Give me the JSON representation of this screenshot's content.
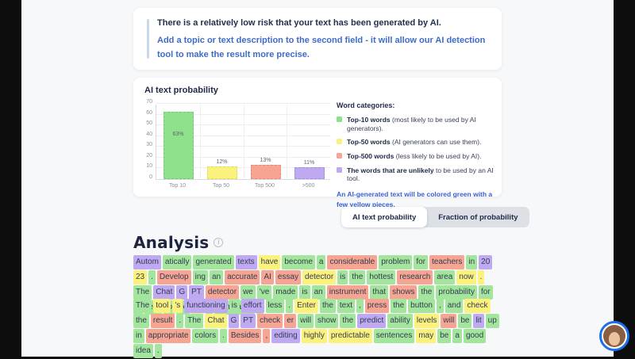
{
  "risk_card": {
    "line_pre": "There is a ",
    "line_bold": "relatively low risk",
    "line_post": " that your text has been generated by AI.",
    "note": "Add a topic or text description to the second field - it will allow our AI detection tool to make the result more precise."
  },
  "chart_data": {
    "type": "bar",
    "title": "AI text probability",
    "categories": [
      "Top 10",
      "Top 50",
      "Top 500",
      ">500"
    ],
    "values": [
      63,
      12,
      13,
      11
    ],
    "value_labels": [
      "63%",
      "12%",
      "13%",
      "11%"
    ],
    "bar_colors": [
      "#8fe08a",
      "#fbf27d",
      "#f5a592",
      "#bfa9f1"
    ],
    "bar_borders": [
      "#72c96f",
      "#e3d95f",
      "#e08a77",
      "#a48cdf"
    ],
    "ylim": [
      0,
      70
    ],
    "yticks": [
      0,
      10,
      20,
      30,
      40,
      50,
      60,
      70
    ],
    "grid": "on",
    "legend_position": "right"
  },
  "legend": {
    "heading": "Word categories:",
    "items": [
      {
        "color": "#8fe08a",
        "bold": "Top-10 words",
        "rest": " (most likely to be used by AI generators)."
      },
      {
        "color": "#fbf27d",
        "bold": "Top-50 words",
        "rest": " (AI generators can use them)."
      },
      {
        "color": "#f5a592",
        "bold": "Top-500 words",
        "rest": " (less likely to be used by AI)."
      },
      {
        "color": "#bfa9f1",
        "bold": "The words that are unlikely",
        "rest": " to be used by an AI tool."
      }
    ],
    "note": "An AI-generated text will be colored green with a few yellow pieces."
  },
  "toggle": {
    "active_label": "AI text probability",
    "inactive_label": "Fraction of probability"
  },
  "analysis": {
    "heading": "Analysis",
    "paragraphs": [
      [
        {
          "t": "Autom",
          "c": "p"
        },
        {
          "t": "atically",
          "c": "g"
        },
        {
          "t": "generated",
          "c": "g"
        },
        {
          "t": "texts",
          "c": "p"
        },
        {
          "t": "have",
          "c": "y"
        },
        {
          "t": "become",
          "c": "g"
        },
        {
          "t": "a",
          "c": "g"
        },
        {
          "t": "considerable",
          "c": "r"
        },
        {
          "t": "problem",
          "c": "g"
        },
        {
          "t": "for",
          "c": "g"
        },
        {
          "t": "teachers",
          "c": "r"
        },
        {
          "t": "in",
          "c": "g"
        },
        {
          "t": "20",
          "c": "p"
        },
        {
          "t": "23",
          "c": "y"
        },
        {
          "t": ".",
          "c": "g"
        },
        {
          "t": "Develop",
          "c": "r"
        },
        {
          "t": "ing",
          "c": "g"
        },
        {
          "t": "an",
          "c": "g"
        },
        {
          "t": "accurate",
          "c": "r"
        },
        {
          "t": "AI",
          "c": "r"
        },
        {
          "t": "essay",
          "c": "r"
        },
        {
          "t": "detector",
          "c": "y"
        },
        {
          "t": "is",
          "c": "g"
        },
        {
          "t": "the",
          "c": "g"
        },
        {
          "t": "hottest",
          "c": "g"
        },
        {
          "t": "research",
          "c": "r"
        },
        {
          "t": "area",
          "c": "g"
        },
        {
          "t": "now",
          "c": "y"
        },
        {
          "t": ".",
          "c": "y"
        },
        {
          "t": "The",
          "c": "g"
        },
        {
          "t": "Chat",
          "c": "p"
        },
        {
          "t": "G",
          "c": "p"
        },
        {
          "t": "PT",
          "c": "p"
        },
        {
          "t": "detector",
          "c": "r"
        },
        {
          "t": "we",
          "c": "g"
        },
        {
          "t": "'ve",
          "c": "g"
        },
        {
          "t": "made",
          "c": "g"
        },
        {
          "t": "is",
          "c": "g"
        },
        {
          "t": "an",
          "c": "g"
        },
        {
          "t": "instrument",
          "c": "r"
        },
        {
          "t": "that",
          "c": "g"
        },
        {
          "t": "shows",
          "c": "r"
        },
        {
          "t": "the",
          "c": "g"
        },
        {
          "t": "probability",
          "c": "g"
        },
        {
          "t": "for",
          "c": "g"
        },
        {
          "t": "a",
          "c": "g"
        },
        {
          "t": "text",
          "c": "g"
        },
        {
          "t": "to",
          "c": "g"
        },
        {
          "t": "be",
          "c": "g"
        },
        {
          "t": "AI",
          "c": "y"
        },
        {
          "t": "-",
          "c": "g"
        },
        {
          "t": "generated",
          "c": "g"
        },
        {
          "t": ".",
          "c": "g"
        }
      ],
      [
        {
          "t": "The",
          "c": "g"
        },
        {
          "t": "tool",
          "c": "y"
        },
        {
          "t": "'s",
          "c": "y"
        },
        {
          "t": "functioning",
          "c": "p"
        },
        {
          "t": "is",
          "c": "g"
        },
        {
          "t": "effort",
          "c": "p"
        },
        {
          "t": "less",
          "c": "g"
        },
        {
          "t": ".",
          "c": "g"
        },
        {
          "t": "Enter",
          "c": "y"
        },
        {
          "t": "the",
          "c": "g"
        },
        {
          "t": "text",
          "c": "g"
        },
        {
          "t": ",",
          "c": "g"
        },
        {
          "t": "press",
          "c": "r"
        },
        {
          "t": "the",
          "c": "g"
        },
        {
          "t": "button",
          "c": "g"
        },
        {
          "t": ",",
          "c": "g"
        },
        {
          "t": "and",
          "c": "g"
        },
        {
          "t": "check",
          "c": "y"
        },
        {
          "t": "the",
          "c": "g"
        },
        {
          "t": "result",
          "c": "r"
        },
        {
          "t": ".",
          "c": "g"
        },
        {
          "t": "The",
          "c": "g"
        },
        {
          "t": "Chat",
          "c": "y"
        },
        {
          "t": "G",
          "c": "p"
        },
        {
          "t": "PT",
          "c": "p"
        },
        {
          "t": "check",
          "c": "r"
        },
        {
          "t": "er",
          "c": "r"
        },
        {
          "t": "will",
          "c": "g"
        },
        {
          "t": "show",
          "c": "g"
        },
        {
          "t": "the",
          "c": "g"
        },
        {
          "t": "predict",
          "c": "p"
        },
        {
          "t": "ability",
          "c": "g"
        },
        {
          "t": "levels",
          "c": "y"
        },
        {
          "t": "will",
          "c": "r"
        },
        {
          "t": "be",
          "c": "g"
        },
        {
          "t": "lit",
          "c": "p"
        },
        {
          "t": "up",
          "c": "g"
        },
        {
          "t": "in",
          "c": "g"
        },
        {
          "t": "appropriate",
          "c": "r"
        },
        {
          "t": "colors",
          "c": "g"
        },
        {
          "t": ".",
          "c": "g"
        },
        {
          "t": "Besides",
          "c": "r"
        },
        {
          "t": ",",
          "c": "r"
        },
        {
          "t": "editing",
          "c": "p"
        },
        {
          "t": "highly",
          "c": "y"
        },
        {
          "t": "predictable",
          "c": "y"
        },
        {
          "t": "sentences",
          "c": "g"
        },
        {
          "t": "may",
          "c": "y"
        },
        {
          "t": "be",
          "c": "g"
        },
        {
          "t": "a",
          "c": "g"
        },
        {
          "t": "good",
          "c": "g"
        },
        {
          "t": "idea",
          "c": "g"
        },
        {
          "t": ".",
          "c": "g"
        }
      ]
    ]
  },
  "chat_widget": {
    "name": "support-chat-avatar"
  }
}
